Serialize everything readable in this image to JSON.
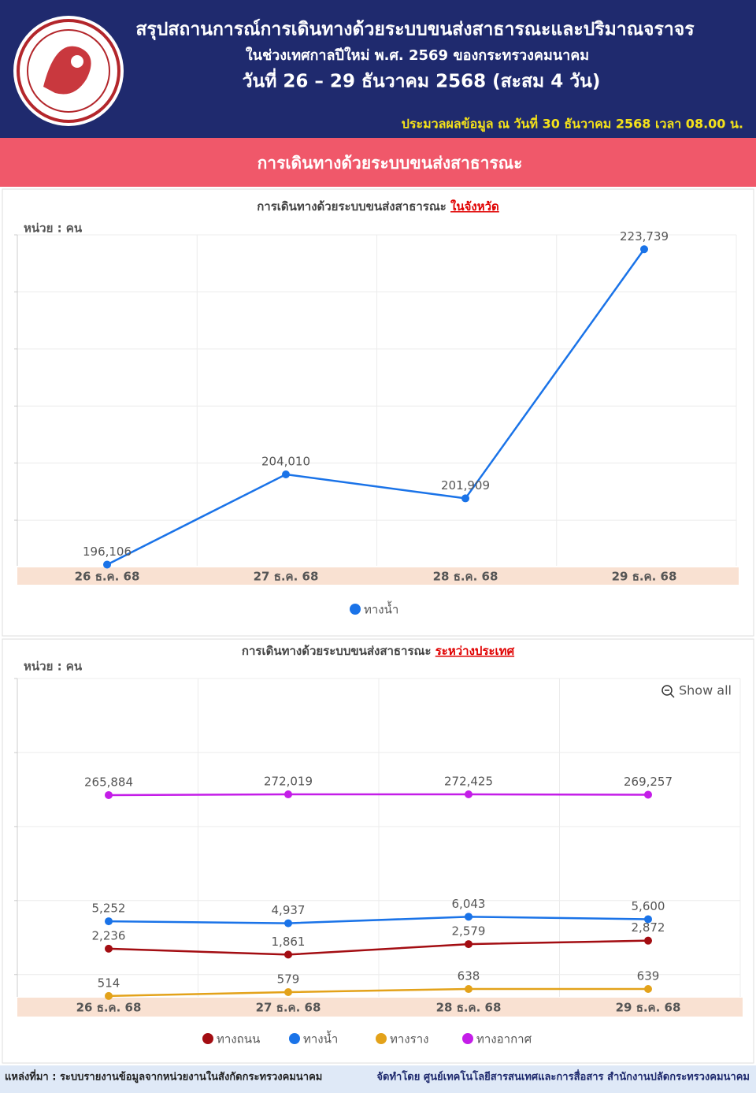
{
  "header": {
    "title_line1": "สรุปสถานการณ์การเดินทางด้วยระบบขนส่งสาธารณะและปริมาณจราจร",
    "title_line2": "ในช่วงเทศกาลปีใหม่ พ.ศ. 2569 ของกระทรวงคมนาคม",
    "title_line3": "วันที่  26 – 29 ธันวาคม 2568  (สะสม 4 วัน)",
    "processed_note": "ประมวลผลข้อมูล ณ วันที่  30 ธันวาคม 2568 เวลา 08.00 น."
  },
  "section_title": "การเดินทางด้วยระบบขนส่งสาธารณะ",
  "chart_data": [
    {
      "type": "line",
      "title": "การเดินทางด้วยระบบขนส่งสาธารณะ",
      "title_emphasis": "ในจังหวัด",
      "unit_label": "หน่วย : คน",
      "categories": [
        "26 ธ.ค. 68",
        "27 ธ.ค. 68",
        "28 ธ.ค. 68",
        "29 ธ.ค. 68"
      ],
      "series": [
        {
          "name": "ทางน้ำ",
          "color": "#1a73e8",
          "values": [
            196106,
            204010,
            201909,
            223739
          ],
          "value_labels": [
            "196,106",
            "204,010",
            "201,909",
            "223,739"
          ]
        }
      ],
      "ylim": [
        196000,
        225000
      ],
      "yticks": [
        200000,
        205000,
        210000,
        215000,
        220000,
        225000
      ],
      "log_scale": false,
      "grid": true,
      "legend": "bottom"
    },
    {
      "type": "line",
      "title": "การเดินทางด้วยระบบขนส่งสาธารณะ",
      "title_emphasis": "ระหว่างประเทศ",
      "unit_label": "หน่วย : คน",
      "button": "Show all",
      "categories": [
        "26 ธ.ค. 68",
        "27 ธ.ค. 68",
        "28 ธ.ค. 68",
        "29 ธ.ค. 68"
      ],
      "series": [
        {
          "name": "ทางถนน",
          "color": "#a30d12",
          "values": [
            2236,
            1861,
            2579,
            2872
          ],
          "value_labels": [
            "2,236",
            "1,861",
            "2,579",
            "2,872"
          ]
        },
        {
          "name": "ทางน้ำ",
          "color": "#1a73e8",
          "values": [
            5252,
            4937,
            6043,
            5600
          ],
          "value_labels": [
            "5,252",
            "4,937",
            "6,043",
            "5,600"
          ]
        },
        {
          "name": "ทางราง",
          "color": "#e3a21a",
          "values": [
            514,
            579,
            638,
            639
          ]
        },
        {
          "name": "ทางอากาศ",
          "color": "#c41de8",
          "values": [
            265884,
            272019,
            272425,
            269257
          ],
          "value_labels": [
            "265,884",
            "272,019",
            "272,425",
            "269,257"
          ]
        }
      ],
      "ylim": [
        500,
        10000000
      ],
      "yticks": [
        1000,
        10000,
        100000,
        1000000,
        10000000
      ],
      "log_scale": true,
      "grid": true,
      "legend": "bottom"
    }
  ],
  "footer": {
    "source": "แหล่งที่มา : ระบบรายงานข้อมูลจากหน่วยงานในสังกัดกระทรวงคมนาคม",
    "credit": "จัดทำโดย ศูนย์เทคโนโลยีสารสนเทศและการสื่อสาร สำนักงานปลัดกระทรวงคมนาคม"
  }
}
